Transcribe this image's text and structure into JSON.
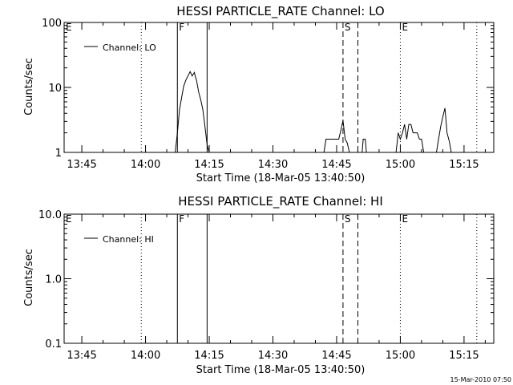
{
  "footer": {
    "timestamp": "15-Mar-2010 07:50"
  },
  "chart_data": [
    {
      "type": "line",
      "title": "HESSI PARTICLE_RATE Channel: LO",
      "xlabel": "Start Time (18-Mar-05 13:40:50)",
      "ylabel": "Counts/sec",
      "yscale": "log",
      "xlim": [
        "13:40:50",
        "15:22:00"
      ],
      "ylim": [
        1,
        100
      ],
      "x_ticks": [
        "13:45",
        "14:00",
        "14:15",
        "14:30",
        "14:45",
        "15:00",
        "15:15"
      ],
      "y_ticks": [
        "1",
        "10",
        "100"
      ],
      "legend": {
        "position": "top-left",
        "entries": [
          "Channel: LO"
        ]
      },
      "markers": [
        {
          "label": "E",
          "time": "13:40:50",
          "style": "dotted"
        },
        {
          "label": "",
          "time": "13:59:00",
          "style": "dotted"
        },
        {
          "label": "F",
          "time": "14:07:30",
          "style": "solid"
        },
        {
          "label": "",
          "time": "14:14:30",
          "style": "solid"
        },
        {
          "label": "S",
          "time": "14:46:30",
          "style": "dashed"
        },
        {
          "label": "",
          "time": "14:50:00",
          "style": "dashed"
        },
        {
          "label": "E",
          "time": "15:00:00",
          "style": "dotted"
        },
        {
          "label": "",
          "time": "15:18:00",
          "style": "dotted"
        }
      ],
      "series": [
        {
          "name": "Channel: LO",
          "segments": [
            {
              "times": [
                "14:07:00",
                "14:07:30",
                "14:08:00",
                "14:08:30",
                "14:09:00",
                "14:09:30",
                "14:10:00",
                "14:10:30",
                "14:11:00",
                "14:11:30",
                "14:11:45",
                "14:12:00",
                "14:12:15",
                "14:12:30",
                "14:13:00",
                "14:13:30",
                "14:14:00",
                "14:14:30",
                "14:15:00"
              ],
              "values": [
                1,
                2,
                4.5,
                7,
                10.5,
                13,
                15,
                17.5,
                15,
                17,
                14.5,
                13,
                10.5,
                8.5,
                6.5,
                4.5,
                2.5,
                1.3,
                1
              ]
            },
            {
              "times": [
                "14:42:00",
                "14:42:30",
                "14:45:30",
                "14:46:00",
                "14:46:30",
                "14:47:00",
                "14:47:30",
                "14:48:00"
              ],
              "values": [
                1,
                1.6,
                1.6,
                2.2,
                3.1,
                1.6,
                1.4,
                1
              ]
            },
            {
              "times": [
                "14:51:00",
                "14:51:15",
                "14:51:30",
                "14:51:45",
                "14:52:00"
              ],
              "values": [
                1,
                1.6,
                1.6,
                1.6,
                1
              ]
            },
            {
              "times": [
                "14:59:00",
                "14:59:30",
                "15:00:00",
                "15:00:30",
                "15:01:00",
                "15:01:30",
                "15:02:00",
                "15:02:30",
                "15:03:00",
                "15:03:30",
                "15:04:00",
                "15:04:30",
                "15:05:00",
                "15:05:30"
              ],
              "values": [
                1,
                2,
                1.6,
                2,
                2.7,
                1.6,
                2.7,
                2.7,
                2,
                2,
                2,
                1.6,
                1.6,
                1
              ]
            },
            {
              "times": [
                "15:08:30",
                "15:09:00",
                "15:09:30",
                "15:10:00",
                "15:10:30",
                "15:11:00",
                "15:11:30",
                "15:12:00"
              ],
              "values": [
                1,
                1.6,
                2.5,
                3.5,
                4.8,
                2,
                1.5,
                1
              ]
            }
          ]
        }
      ]
    },
    {
      "type": "line",
      "title": "HESSI PARTICLE_RATE Channel: HI",
      "xlabel": "Start Time (18-Mar-05 13:40:50)",
      "ylabel": "Counts/sec",
      "yscale": "log",
      "xlim": [
        "13:40:50",
        "15:22:00"
      ],
      "ylim": [
        0.1,
        10
      ],
      "x_ticks": [
        "13:45",
        "14:00",
        "14:15",
        "14:30",
        "14:45",
        "15:00",
        "15:15"
      ],
      "y_ticks": [
        "0.1",
        "1.0",
        "10.0"
      ],
      "legend": {
        "position": "top-left",
        "entries": [
          "Channel: HI"
        ]
      },
      "markers": [
        {
          "label": "E",
          "time": "13:40:50",
          "style": "dotted"
        },
        {
          "label": "",
          "time": "13:59:00",
          "style": "dotted"
        },
        {
          "label": "F",
          "time": "14:07:30",
          "style": "solid"
        },
        {
          "label": "",
          "time": "14:14:30",
          "style": "solid"
        },
        {
          "label": "S",
          "time": "14:46:30",
          "style": "dashed"
        },
        {
          "label": "",
          "time": "14:50:00",
          "style": "dashed"
        },
        {
          "label": "E",
          "time": "15:00:00",
          "style": "dotted"
        },
        {
          "label": "",
          "time": "15:18:00",
          "style": "dotted"
        }
      ],
      "series": [
        {
          "name": "Channel: HI",
          "segments": []
        }
      ]
    }
  ]
}
